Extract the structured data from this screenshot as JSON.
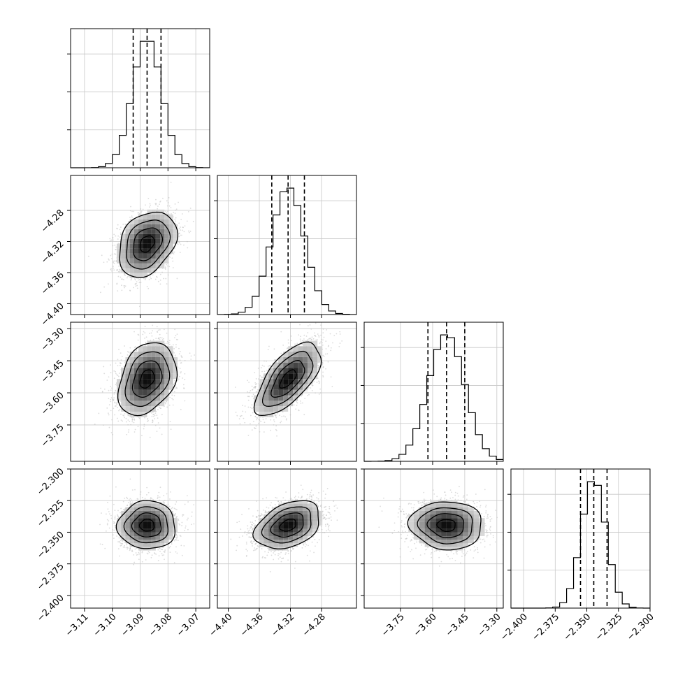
{
  "chart_data": {
    "type": "corner",
    "n_params": 4,
    "params": [
      {
        "mean": -3.0875,
        "sd": 0.0052,
        "quantiles": [
          -3.0925,
          -3.0875,
          -3.0825
        ],
        "range": [
          -3.115,
          -3.065
        ],
        "ticks": [
          -3.11,
          -3.1,
          -3.09,
          -3.08,
          -3.07
        ],
        "tick_labels": [
          "−3.11",
          "−3.10",
          "−3.09",
          "−3.08",
          "−3.07"
        ]
      },
      {
        "mean": -4.323,
        "sd": 0.021,
        "quantiles": [
          -4.344,
          -4.323,
          -4.302
        ],
        "range": [
          -4.414,
          -4.235
        ],
        "ticks": [
          -4.4,
          -4.36,
          -4.32,
          -4.28
        ],
        "tick_labels": [
          "−4.40",
          "−4.36",
          "−4.32",
          "−4.28"
        ]
      },
      {
        "mean": -3.535,
        "sd": 0.085,
        "quantiles": [
          -3.622,
          -3.535,
          -3.45
        ],
        "range": [
          -3.92,
          -3.27
        ],
        "ticks": [
          -3.75,
          -3.6,
          -3.45,
          -3.3
        ],
        "tick_labels": [
          "−3.75",
          "−3.60",
          "−3.45",
          "−3.30"
        ]
      },
      {
        "mean": -2.3445,
        "sd": 0.0095,
        "quantiles": [
          -2.355,
          -2.3445,
          -2.334
        ],
        "range": [
          -2.41,
          -2.3
        ],
        "ticks": [
          -2.4,
          -2.375,
          -2.35,
          -2.325,
          -2.3
        ],
        "tick_labels": [
          "−2.400",
          "−2.375",
          "−2.350",
          "−2.325",
          "−2.300"
        ]
      }
    ],
    "correlations": {
      "1-0": 0.3,
      "2-0": 0.3,
      "2-1": 0.65,
      "3-0": 0.0,
      "3-1": 0.35,
      "3-2": -0.05
    },
    "contour_levels_sigma": [
      0.5,
      1.0,
      1.5,
      2.0
    ],
    "histogram_bins": 20,
    "grid": true,
    "scatter_color": "#c0c0c0",
    "line_color": "#000000"
  }
}
